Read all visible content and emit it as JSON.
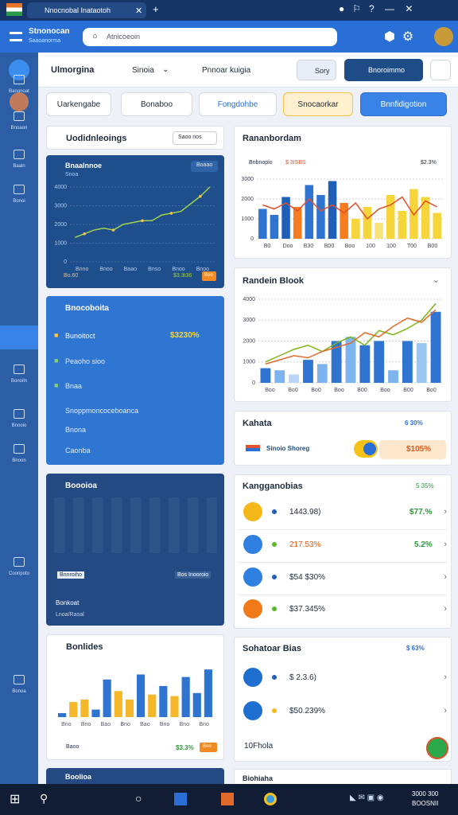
{
  "browser": {
    "tab": "Nnocnobal Inataotoh"
  },
  "header": {
    "brand": "Stnonocan",
    "brand_sub": "Saaoanorma",
    "search": "Atnicoeoin"
  },
  "sidebar": [
    "Banonoat",
    "Bnoaon",
    "Baaln",
    "Bonoi",
    "Bonoiln",
    "Bnooio",
    "Bnoon",
    "Coonpoto",
    "Bonoa"
  ],
  "toolbar": {
    "title": "Ulmorgina",
    "tab1": "Sinoia",
    "tab2": "Pnnoar kuigia",
    "btn1": "Sory",
    "btn2": "Bnoroimmo"
  },
  "chips": [
    "Uarkengabe",
    "Bonaboo",
    "Fongdohbe",
    "Snocaorkar",
    "Bnnfidigotion"
  ],
  "trend": {
    "title": "Uodidnleoings",
    "select": "Saoo nos",
    "chart_title": "Bnaalnnoe",
    "chart_sub": "Snoa",
    "chart_btn": "Boaao",
    "footer_left": "Bo.60",
    "footer_value": "$3.3t36",
    "footer_badge": "Boo",
    "chart": {
      "type": "line",
      "ylim": [
        0,
        4000
      ],
      "yticks": [
        0,
        1000,
        2000,
        3000,
        4000
      ],
      "values": [
        1300,
        1500,
        1700,
        1800,
        1700,
        2000,
        2100,
        2200,
        2200,
        2500,
        2600,
        2700,
        3100,
        3500,
        4000
      ],
      "color": "#9fd24a",
      "xlabels": [
        "Bnno",
        "Bnoo",
        "Baao",
        "Bnso",
        "Bnoo",
        "Bnoo"
      ]
    }
  },
  "blue_card": {
    "title": "Bnocoboita",
    "rows": [
      "Bunoitoct",
      "Peaoho sioo",
      "Bnaa",
      "Snoppmoncoceboanca",
      "Bnona",
      "Caonba"
    ],
    "value": "$3230%"
  },
  "dark_card": {
    "title": "Boooioa",
    "tag1": "Bnnroiho",
    "tag2": "Bos Inooroio",
    "footer1": "Bonkoat",
    "footer2": "Lnoa/Raoal"
  },
  "bars_card": {
    "title": "Bonlides",
    "footer_left": "Baoo",
    "footer_value": "$3.3%",
    "footer_badge": "Boo",
    "chart": {
      "type": "bar",
      "ylim": [
        0,
        1000
      ],
      "values": [
        80,
        300,
        350,
        150,
        750,
        520,
        350,
        850,
        450,
        620,
        420,
        800,
        480,
        950
      ],
      "colors": [
        "#2f74d0",
        "#f5b82a",
        "#f5b82a",
        "#2f74d0",
        "#2f74d0",
        "#f5b82a",
        "#f5b82a",
        "#2f74d0",
        "#f5b82a",
        "#2f74d0",
        "#f5b82a",
        "#2f74d0",
        "#2f74d0",
        "#2f74d0"
      ],
      "xlabels": [
        "Bno",
        "Bno",
        "Bao",
        "Bno",
        "Bao",
        "Bno",
        "Bno",
        "Bno"
      ]
    }
  },
  "bottom_left": "Boolioa",
  "revenue": {
    "title": "Rananbordam",
    "legend": "Bnbnoplo",
    "legend_value": "$ 3ISBS",
    "corner": "$2.3%",
    "chart": {
      "type": "bar",
      "ylim": [
        0,
        3000
      ],
      "yticks": [
        0,
        1000,
        2000,
        3000
      ],
      "values": [
        1500,
        1200,
        2100,
        1600,
        2700,
        2200,
        2900,
        1800,
        1000,
        1600,
        800,
        2200,
        1400,
        2500,
        2100,
        1300
      ],
      "colors": [
        "#2f74d0",
        "#2f74d0",
        "#1f5fb8",
        "#f57c1f",
        "#2f74d0",
        "#2f74d0",
        "#1f5fb8",
        "#f57c1f",
        "#f5d53a",
        "#f5d53a",
        "#f5e47a",
        "#f5d53a",
        "#f5d53a",
        "#f5d53a",
        "#f5d53a",
        "#f5d53a"
      ],
      "lines": [
        {
          "color": "#e0502a",
          "values": [
            1700,
            1500,
            1800,
            1400,
            2000,
            1400,
            1700,
            1300,
            1800,
            1000,
            1500,
            1700,
            2100,
            1200,
            1900,
            1600
          ]
        }
      ],
      "xlabels": [
        "B0",
        "Doo",
        "B30",
        "B00",
        "Boo",
        "100",
        "100",
        "T00",
        "B00"
      ]
    }
  },
  "random": {
    "title": "Randein Blook",
    "chart": {
      "type": "bar",
      "ylim": [
        0,
        4000
      ],
      "yticks": [
        0,
        1000,
        2000,
        3000,
        4000
      ],
      "values": [
        700,
        600,
        400,
        1100,
        900,
        2000,
        2200,
        1800,
        2000,
        600,
        2000,
        1900,
        3400
      ],
      "colors": [
        "#2f74d0",
        "#7db3ee",
        "#b9d6f6",
        "#2f74d0",
        "#7db3ee",
        "#2f74d0",
        "#7db3ee",
        "#2f74d0",
        "#2f74d0",
        "#7db3ee",
        "#2f74d0",
        "#9cc6f2",
        "#2f74d0"
      ],
      "lines": [
        {
          "color": "#7cb518",
          "values": [
            1000,
            1300,
            1600,
            1800,
            1500,
            1900,
            2200,
            1800,
            2500,
            2300,
            2600,
            3000,
            3800
          ]
        },
        {
          "color": "#e06a2a",
          "values": [
            900,
            1100,
            1300,
            1200,
            1500,
            1700,
            1900,
            2400,
            2200,
            2700,
            3100,
            2900,
            3500
          ]
        }
      ],
      "xlabels": [
        "Boo",
        "Bo0",
        "Bo0",
        "Boo",
        "B00",
        "Boo",
        "B00",
        "Bo0"
      ]
    }
  },
  "kahata": {
    "title": "Kahata",
    "corner": "6 30%",
    "row": "Sinoio Shoreg",
    "value": "$105%"
  },
  "kang": {
    "title": "Kangganobias",
    "corner": "5 35%",
    "rows": [
      {
        "label": "1443.98)",
        "value": "$77.%"
      },
      {
        "label": "217.53%",
        "value": "5.2%"
      },
      {
        "label": "$54 $30%"
      },
      {
        "label": "$37.345%"
      }
    ]
  },
  "soha": {
    "title": "Sohatoar Bias",
    "corner": "$ 63%",
    "rows": [
      "$ 2.3.6)",
      "$50.239%"
    ],
    "footer": "10Fhola"
  },
  "bottom_right": "Biohiaha",
  "taskbar": {
    "time": "3000 300",
    "date": "BOOSNII"
  }
}
